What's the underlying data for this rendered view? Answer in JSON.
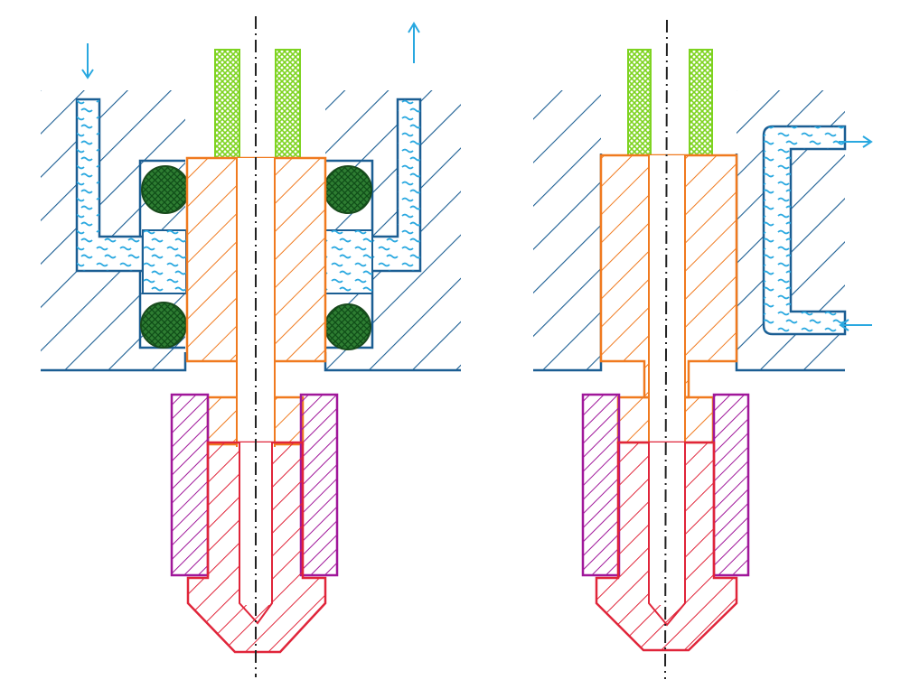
{
  "colors": {
    "housing": "#1b5e93",
    "heat_break": "#f07a1f",
    "filament_tube": "#7ed321",
    "o_ring": "#2e7d32",
    "coolant": "#29a8e0",
    "nozzle": "#e0253a",
    "heater_block": "#a0179a",
    "axis": "#222222",
    "background": "#ffffff"
  },
  "icons": {
    "flow_in": "arrow-down",
    "flow_out": "arrow-up",
    "flow_right": "arrow-right",
    "flow_left": "arrow-left"
  }
}
